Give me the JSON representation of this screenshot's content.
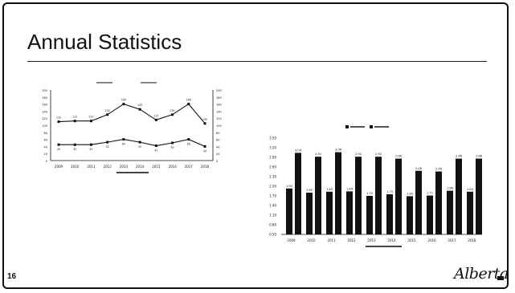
{
  "slide": {
    "title": "Annual Statistics",
    "page_number": "16",
    "logo": "Alberta"
  },
  "chart_data": [
    {
      "type": "line",
      "title": "",
      "x": [
        "2009",
        "2010",
        "2011",
        "2012",
        "2013",
        "2014",
        "2015",
        "2016",
        "2017",
        "2018"
      ],
      "ylim": [
        0,
        200
      ],
      "ylim_right": [
        0,
        200
      ],
      "ticks": [
        "200",
        "180",
        "160",
        "140",
        "120",
        "100",
        "80",
        "60",
        "40",
        "20",
        "0"
      ],
      "series": [
        {
          "name": "",
          "values": [
            110,
            112,
            112,
            130,
            160,
            145,
            115,
            130,
            160,
            105
          ]
        },
        {
          "name": "",
          "values": [
            45,
            45,
            45,
            52,
            60,
            52,
            42,
            50,
            60,
            40
          ]
        }
      ],
      "color": "#111111"
    },
    {
      "type": "bar",
      "title": "",
      "categories": [
        "2009",
        "2010",
        "2011",
        "2012",
        "2013",
        "2014",
        "2015",
        "2016",
        "2017",
        "2018"
      ],
      "ylim": [
        0.5,
        3.5
      ],
      "yticks": [
        "3.50",
        "3.20",
        "2.90",
        "2.60",
        "2.30",
        "2.00",
        "1.70",
        "1.40",
        "1.10",
        "0.80",
        "0.50"
      ],
      "xlabel": "",
      "series": [
        {
          "name": "",
          "values": [
            1.93,
            1.8,
            1.83,
            1.84,
            1.7,
            1.75,
            1.69,
            1.71,
            1.86,
            1.83
          ],
          "color": "#111111"
        },
        {
          "name": "",
          "values": [
            3.04,
            2.92,
            3.06,
            2.92,
            2.92,
            2.86,
            2.48,
            2.46,
            2.86,
            2.86
          ],
          "color": "#111111"
        }
      ]
    }
  ]
}
